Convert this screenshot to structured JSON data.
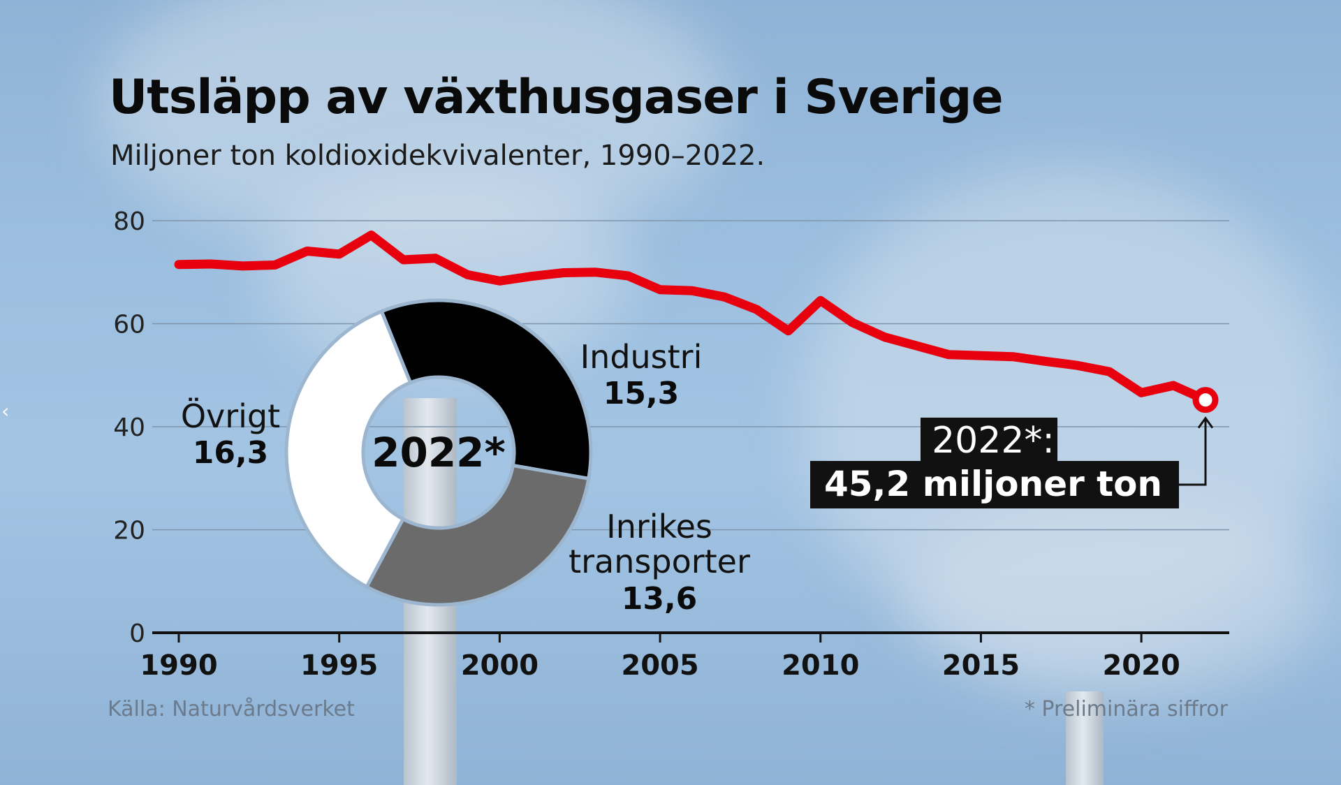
{
  "title": "Utsläpp av växthusgaser i Sverige",
  "subtitle": "Miljoner ton koldioxidekvivalenter, 1990–2022.",
  "source": "Källa: Naturvårdsverket",
  "footnote": "* Preliminära siffror",
  "nav": {
    "prev_symbol": "‹"
  },
  "colors": {
    "line": "#e8000f",
    "industri": "#000000",
    "transport": "#6b6b6b",
    "ovrigt": "#ffffff",
    "axis": "#111111",
    "grid": "#7e95ab"
  },
  "chart_data": [
    {
      "type": "line",
      "title": "Utsläpp av växthusgaser i Sverige",
      "subtitle": "Miljoner ton koldioxidekvivalenter, 1990–2022.",
      "x": [
        1990,
        1991,
        1992,
        1993,
        1994,
        1995,
        1996,
        1997,
        1998,
        1999,
        2000,
        2001,
        2002,
        2003,
        2004,
        2005,
        2006,
        2007,
        2008,
        2009,
        2010,
        2011,
        2012,
        2013,
        2014,
        2015,
        2016,
        2017,
        2018,
        2019,
        2020,
        2021,
        2022
      ],
      "series": [
        {
          "values": [
            71.5,
            71.6,
            71.2,
            71.4,
            74.1,
            73.5,
            77.2,
            72.4,
            72.7,
            69.5,
            68.3,
            69.2,
            69.9,
            70.0,
            69.3,
            66.6,
            66.4,
            65.2,
            62.8,
            58.6,
            64.5,
            60.2,
            57.4,
            55.7,
            54.0,
            53.8,
            53.6,
            52.7,
            51.9,
            50.7,
            46.6,
            48.0,
            45.2
          ]
        }
      ],
      "xticks": [
        "1990",
        "1995",
        "2000",
        "2005",
        "2010",
        "2015",
        "2020"
      ],
      "yticks": [
        "0",
        "20",
        "40",
        "60",
        "80"
      ],
      "xlim": [
        1990,
        2022
      ],
      "ylim": [
        0,
        80
      ],
      "grid": true,
      "annotation": {
        "x": 2022,
        "y": 45.2,
        "line1": "2022*:",
        "line2": "45,2 miljoner ton"
      }
    },
    {
      "type": "pie",
      "center_label": "2022*",
      "slices": [
        {
          "name": "Industri",
          "label_lines": [
            "Industri"
          ],
          "value": 15.3,
          "value_label": "15,3"
        },
        {
          "name": "Inrikes transporter",
          "label_lines": [
            "Inrikes",
            "transporter"
          ],
          "value": 13.6,
          "value_label": "13,6"
        },
        {
          "name": "Övrigt",
          "label_lines": [
            "Övrigt"
          ],
          "value": 16.3,
          "value_label": "16,3"
        }
      ]
    }
  ]
}
